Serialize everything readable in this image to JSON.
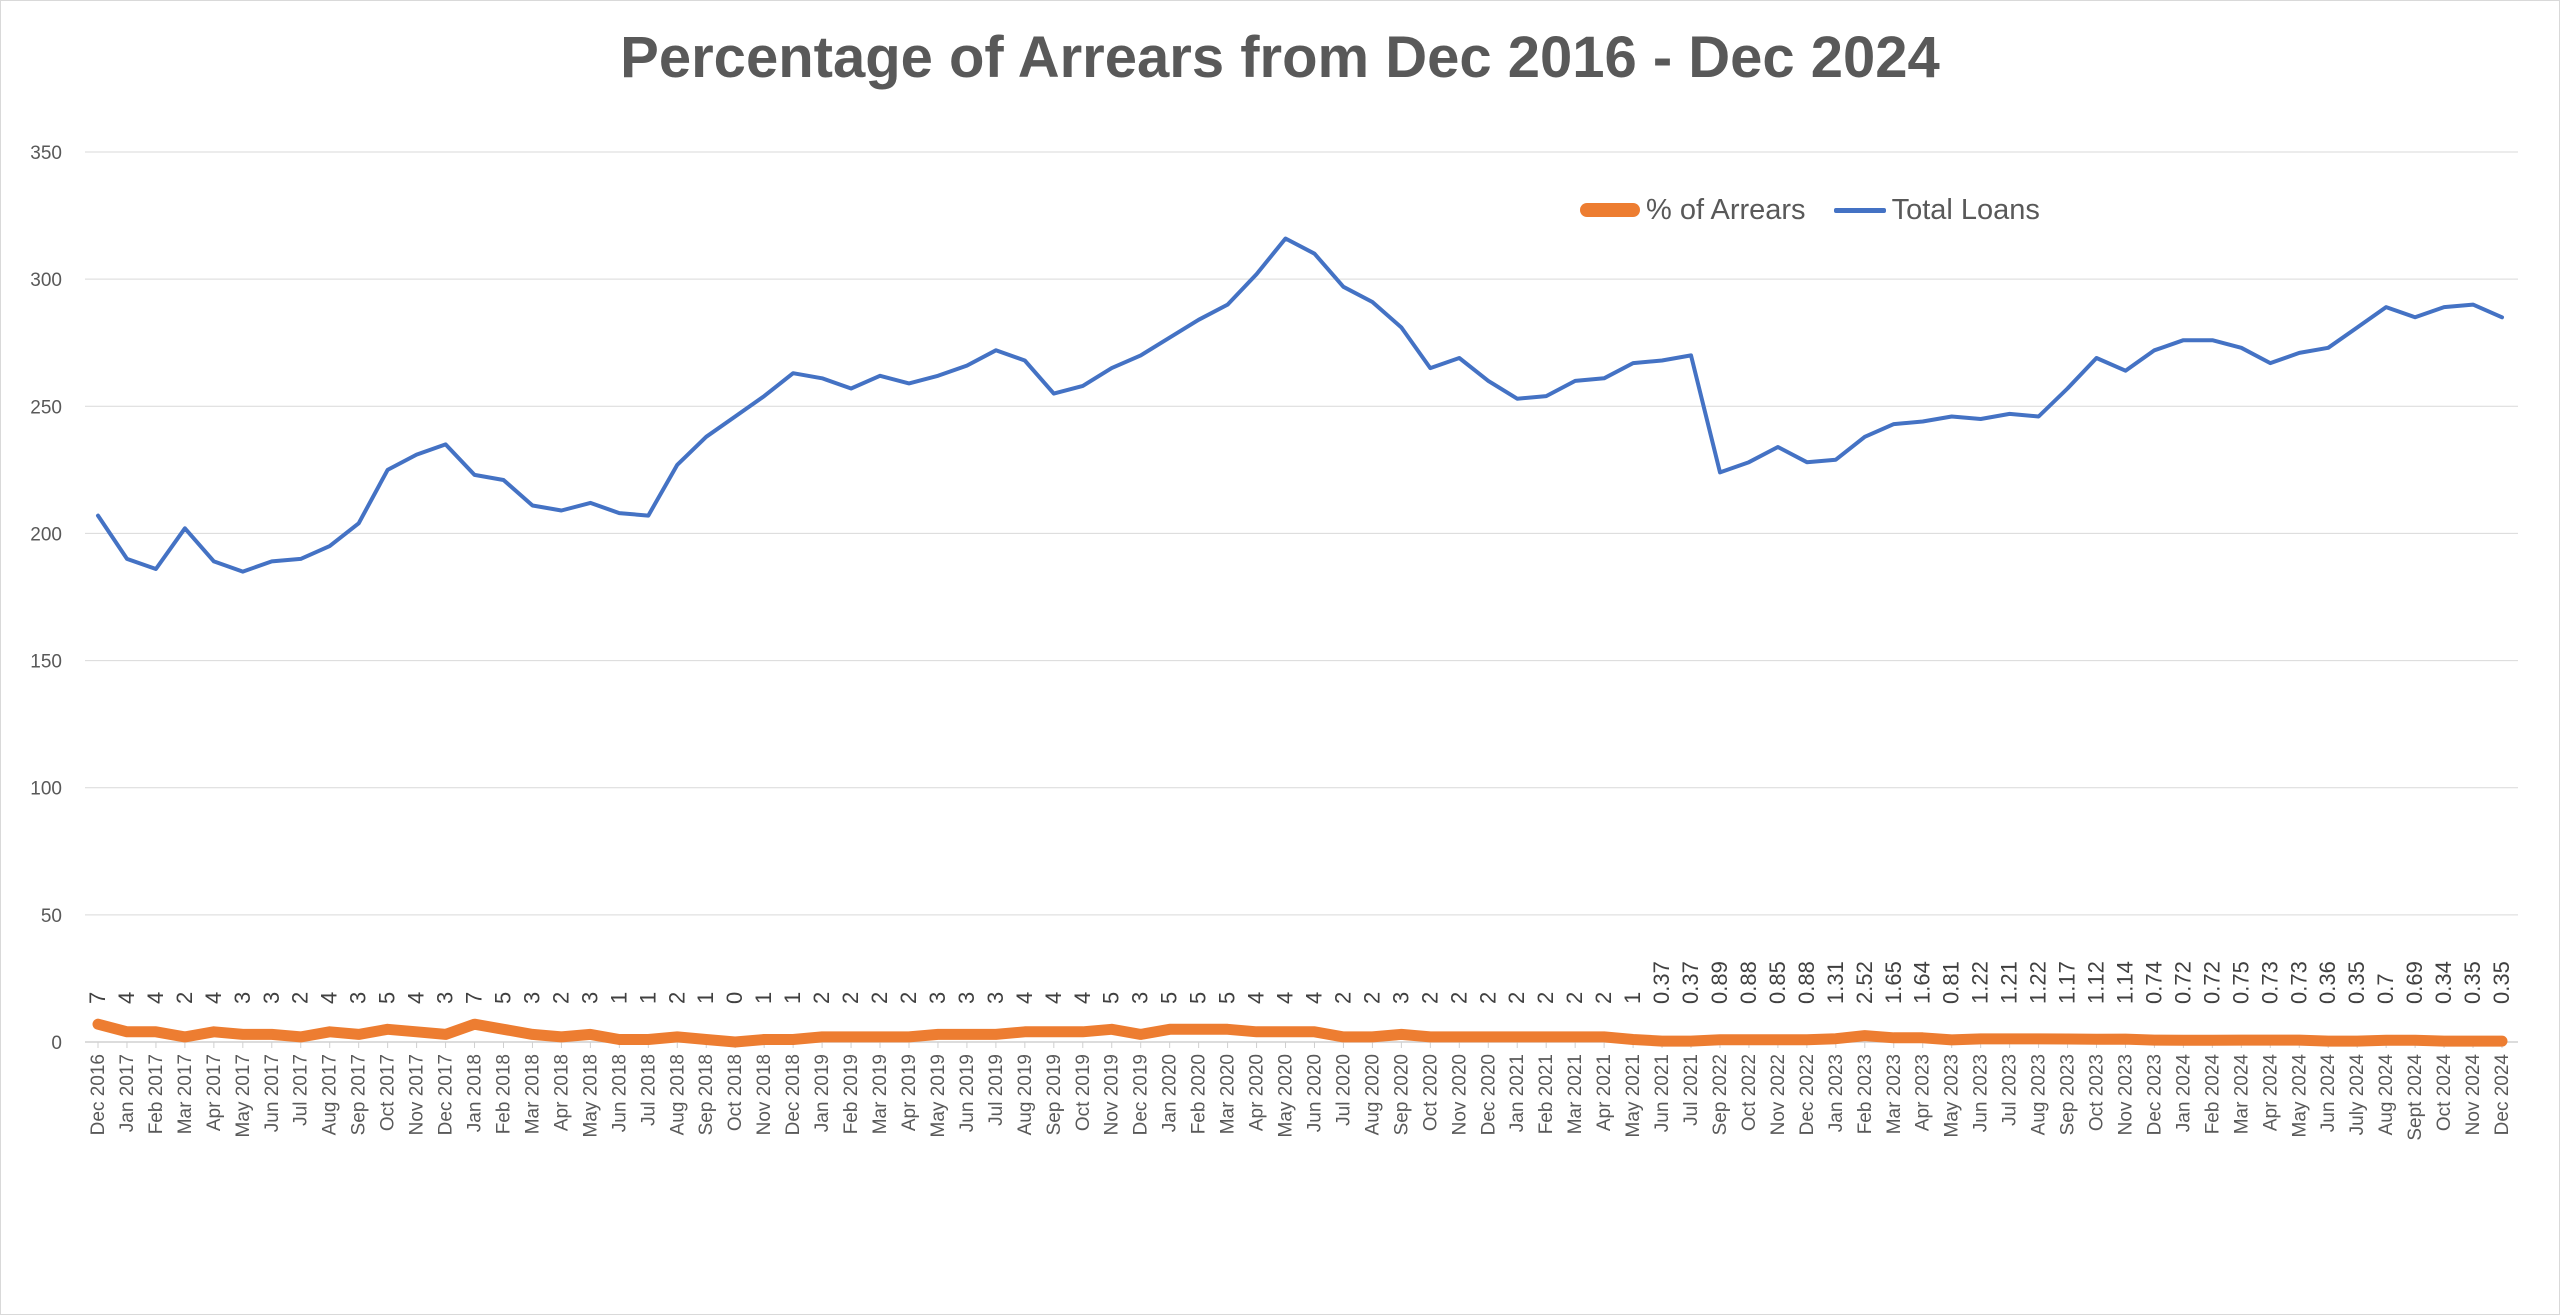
{
  "chart_data": {
    "type": "line",
    "title": "Percentage of Arrears from Dec 2016 - Dec 2024",
    "xlabel": "",
    "ylabel": "",
    "ylim": [
      0,
      350
    ],
    "yticks": [
      0,
      50,
      100,
      150,
      200,
      250,
      300,
      350
    ],
    "grid": true,
    "legend_position": "top-right",
    "categories": [
      "Dec 2016",
      "Jan 2017",
      "Feb 2017",
      "Mar 2017",
      "Apr 2017",
      "May 2017",
      "Jun 2017",
      "Jul 2017",
      "Aug 2017",
      "Sep 2017",
      "Oct 2017",
      "Nov 2017",
      "Dec 2017",
      "Jan 2018",
      "Feb 2018",
      "Mar 2018",
      "Apr 2018",
      "May 2018",
      "Jun 2018",
      "Jul 2018",
      "Aug 2018",
      "Sep 2018",
      "Oct 2018",
      "Nov 2018",
      "Dec 2018",
      "Jan 2019",
      "Feb 2019",
      "Mar 2019",
      "Apr 2019",
      "May 2019",
      "Jun 2019",
      "Jul 2019",
      "Aug 2019",
      "Sep 2019",
      "Oct 2019",
      "Nov 2019",
      "Dec 2019",
      "Jan 2020",
      "Feb 2020",
      "Mar 2020",
      "Apr 2020",
      "May 2020",
      "Jun 2020",
      "Jul 2020",
      "Aug 2020",
      "Sep 2020",
      "Oct 2020",
      "Nov 2020",
      "Dec 2020",
      "Jan 2021",
      "Feb 2021",
      "Mar 2021",
      "Apr 2021",
      "May 2021",
      "Jun 2021",
      "Jul 2021",
      "Sep 2022",
      "Oct 2022",
      "Nov 2022",
      "Dec 2022",
      "Jan 2023",
      "Feb 2023",
      "Mar 2023",
      "Apr 2023",
      "May 2023",
      "Jun 2023",
      "Jul 2023",
      "Aug 2023",
      "Sep 2023",
      "Oct 2023",
      "Nov 2023",
      "Dec 2023",
      "Jan 2024",
      "Feb 2024",
      "Mar 2024",
      "Apr 2024",
      "May 2024",
      "Jun 2024",
      "July 2024",
      "Aug 2024",
      "Sept 2024",
      "Oct 2024",
      "Nov 2024",
      "Dec 2024"
    ],
    "series": [
      {
        "name": "% of Arrears",
        "color": "#ed7d31",
        "data_labels": [
          "7",
          "4",
          "4",
          "2",
          "4",
          "3",
          "3",
          "2",
          "4",
          "3",
          "5",
          "4",
          "3",
          "7",
          "5",
          "3",
          "2",
          "3",
          "1",
          "1",
          "2",
          "1",
          "0",
          "1",
          "1",
          "2",
          "2",
          "2",
          "2",
          "3",
          "3",
          "3",
          "4",
          "4",
          "4",
          "5",
          "3",
          "5",
          "5",
          "5",
          "4",
          "4",
          "4",
          "2",
          "2",
          "3",
          "2",
          "2",
          "2",
          "2",
          "2",
          "2",
          "2",
          "1",
          "0.37",
          "0.37",
          "0.89",
          "0.88",
          "0.85",
          "0.88",
          "1.31",
          "2.52",
          "1.65",
          "1.64",
          "0.81",
          "1.22",
          "1.21",
          "1.22",
          "1.17",
          "1.12",
          "1.14",
          "0.74",
          "0.72",
          "0.72",
          "0.75",
          "0.73",
          "0.73",
          "0.36",
          "0.35",
          "0.7",
          "0.69",
          "0.34",
          "0.35",
          "0.35"
        ],
        "values": [
          7,
          4,
          4,
          2,
          4,
          3,
          3,
          2,
          4,
          3,
          5,
          4,
          3,
          7,
          5,
          3,
          2,
          3,
          1,
          1,
          2,
          1,
          0,
          1,
          1,
          2,
          2,
          2,
          2,
          3,
          3,
          3,
          4,
          4,
          4,
          5,
          3,
          5,
          5,
          5,
          4,
          4,
          4,
          2,
          2,
          3,
          2,
          2,
          2,
          2,
          2,
          2,
          2,
          1,
          0.37,
          0.37,
          0.89,
          0.88,
          0.85,
          0.88,
          1.31,
          2.52,
          1.65,
          1.64,
          0.81,
          1.22,
          1.21,
          1.22,
          1.17,
          1.12,
          1.14,
          0.74,
          0.72,
          0.72,
          0.75,
          0.73,
          0.73,
          0.36,
          0.35,
          0.7,
          0.69,
          0.34,
          0.35,
          0.35
        ]
      },
      {
        "name": "Total Loans",
        "color": "#4472c4",
        "values": [
          207,
          190,
          186,
          202,
          189,
          185,
          189,
          190,
          195,
          204,
          225,
          231,
          235,
          223,
          221,
          211,
          209,
          212,
          208,
          207,
          227,
          238,
          246,
          254,
          263,
          261,
          257,
          262,
          259,
          262,
          266,
          272,
          268,
          255,
          258,
          265,
          270,
          277,
          284,
          290,
          302,
          316,
          310,
          297,
          291,
          281,
          265,
          269,
          260,
          253,
          254,
          260,
          261,
          267,
          268,
          270,
          224,
          228,
          234,
          228,
          229,
          238,
          243,
          244,
          246,
          245,
          247,
          246,
          257,
          269,
          264,
          272,
          276,
          276,
          273,
          267,
          271,
          273,
          281,
          289,
          285,
          289,
          290,
          285
        ]
      }
    ]
  }
}
